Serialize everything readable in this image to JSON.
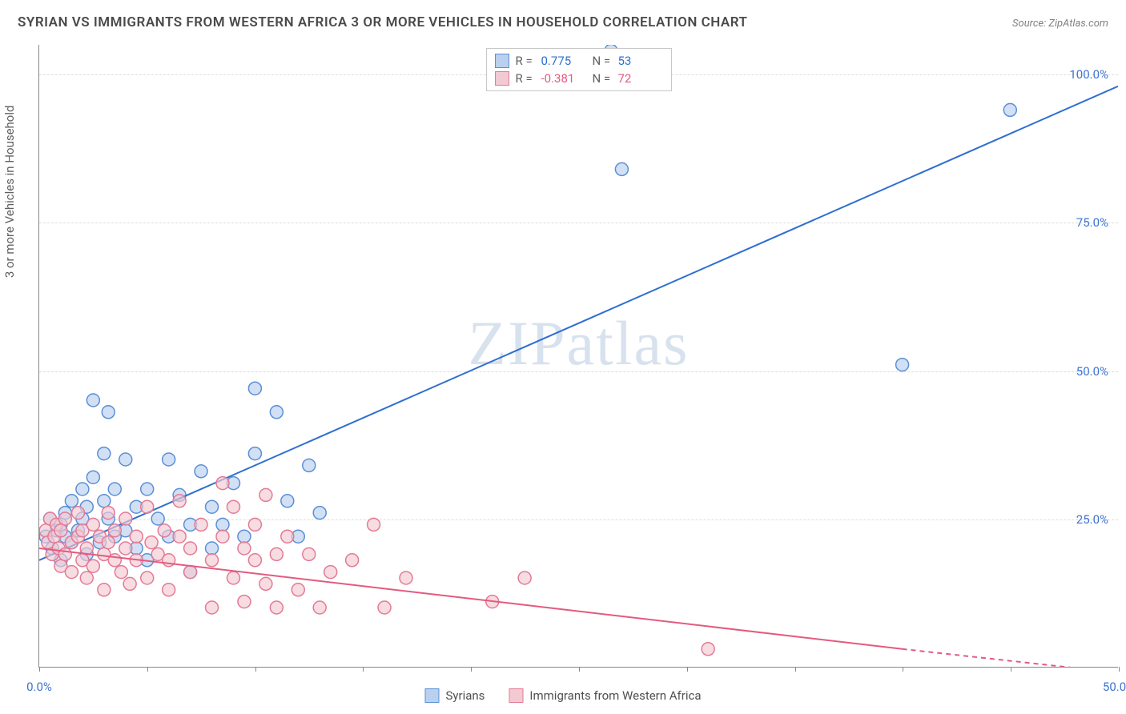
{
  "title": "SYRIAN VS IMMIGRANTS FROM WESTERN AFRICA 3 OR MORE VEHICLES IN HOUSEHOLD CORRELATION CHART",
  "source": "Source: ZipAtlas.com",
  "y_axis_label": "3 or more Vehicles in Household",
  "watermark": "ZIPatlas",
  "chart": {
    "type": "scatter_with_regression",
    "background_color": "#ffffff",
    "grid_color": "#dcdcdc",
    "axis_color": "#888888",
    "tick_label_color": "#3f74d1",
    "xlim": [
      0,
      50
    ],
    "ylim": [
      0,
      105
    ],
    "x_ticks": [
      0,
      5,
      10,
      15,
      20,
      25,
      30,
      35,
      40,
      45,
      50
    ],
    "x_tick_labels": {
      "0": "0.0%",
      "50": "50.0%"
    },
    "y_ticks": [
      25,
      50,
      75,
      100
    ],
    "y_tick_labels": {
      "25": "25.0%",
      "50": "50.0%",
      "75": "75.0%",
      "100": "100.0%"
    },
    "marker_radius": 8,
    "marker_stroke_width": 1.5,
    "line_width": 2,
    "series": [
      {
        "id": "syrians",
        "label": "Syrians",
        "fill": "#b9d0ef",
        "stroke": "#5a8fd6",
        "line_color": "#2f6fd0",
        "R": "0.775",
        "N": "53",
        "regression": {
          "x1": 0,
          "y1": 18,
          "x2": 50,
          "y2": 98
        },
        "points": [
          [
            0.3,
            22
          ],
          [
            0.5,
            25
          ],
          [
            0.6,
            20
          ],
          [
            0.8,
            23
          ],
          [
            1.0,
            24
          ],
          [
            1.0,
            18
          ],
          [
            1.2,
            22
          ],
          [
            1.2,
            26
          ],
          [
            1.5,
            21
          ],
          [
            1.5,
            28
          ],
          [
            1.8,
            23
          ],
          [
            2.0,
            30
          ],
          [
            2.0,
            25
          ],
          [
            2.2,
            27
          ],
          [
            2.2,
            19
          ],
          [
            2.5,
            45
          ],
          [
            2.5,
            32
          ],
          [
            2.8,
            21
          ],
          [
            3.0,
            28
          ],
          [
            3.0,
            36
          ],
          [
            3.2,
            25
          ],
          [
            3.2,
            43
          ],
          [
            3.5,
            30
          ],
          [
            3.5,
            22
          ],
          [
            4.0,
            23
          ],
          [
            4.0,
            35
          ],
          [
            4.5,
            27
          ],
          [
            4.5,
            20
          ],
          [
            5.0,
            18
          ],
          [
            5.0,
            30
          ],
          [
            5.5,
            25
          ],
          [
            6.0,
            35
          ],
          [
            6.0,
            22
          ],
          [
            6.5,
            29
          ],
          [
            7.0,
            16
          ],
          [
            7.0,
            24
          ],
          [
            7.5,
            33
          ],
          [
            8.0,
            20
          ],
          [
            8.0,
            27
          ],
          [
            8.5,
            24
          ],
          [
            9.0,
            31
          ],
          [
            9.5,
            22
          ],
          [
            10.0,
            47
          ],
          [
            10.0,
            36
          ],
          [
            11.0,
            43
          ],
          [
            11.5,
            28
          ],
          [
            12.0,
            22
          ],
          [
            12.5,
            34
          ],
          [
            13.0,
            26
          ],
          [
            26.5,
            104
          ],
          [
            27.0,
            84
          ],
          [
            40.0,
            51
          ],
          [
            45.0,
            94
          ]
        ]
      },
      {
        "id": "immigrants_wa",
        "label": "Immigrants from Western Africa",
        "fill": "#f3c9d3",
        "stroke": "#e37a95",
        "line_color": "#e35a80",
        "R": "-0.381",
        "N": "72",
        "regression": {
          "x1": 0,
          "y1": 20,
          "x2": 40,
          "y2": 3
        },
        "regression_dash": {
          "x1": 40,
          "y1": 3,
          "x2": 50,
          "y2": -1
        },
        "points": [
          [
            0.3,
            23
          ],
          [
            0.4,
            21
          ],
          [
            0.5,
            25
          ],
          [
            0.6,
            19
          ],
          [
            0.7,
            22
          ],
          [
            0.8,
            24
          ],
          [
            0.9,
            20
          ],
          [
            1.0,
            17
          ],
          [
            1.0,
            23
          ],
          [
            1.2,
            25
          ],
          [
            1.2,
            19
          ],
          [
            1.5,
            21
          ],
          [
            1.5,
            16
          ],
          [
            1.8,
            22
          ],
          [
            1.8,
            26
          ],
          [
            2.0,
            18
          ],
          [
            2.0,
            23
          ],
          [
            2.2,
            15
          ],
          [
            2.2,
            20
          ],
          [
            2.5,
            24
          ],
          [
            2.5,
            17
          ],
          [
            2.8,
            22
          ],
          [
            3.0,
            19
          ],
          [
            3.0,
            13
          ],
          [
            3.2,
            26
          ],
          [
            3.2,
            21
          ],
          [
            3.5,
            18
          ],
          [
            3.5,
            23
          ],
          [
            3.8,
            16
          ],
          [
            4.0,
            20
          ],
          [
            4.0,
            25
          ],
          [
            4.2,
            14
          ],
          [
            4.5,
            22
          ],
          [
            4.5,
            18
          ],
          [
            5.0,
            27
          ],
          [
            5.0,
            15
          ],
          [
            5.2,
            21
          ],
          [
            5.5,
            19
          ],
          [
            5.8,
            23
          ],
          [
            6.0,
            13
          ],
          [
            6.0,
            18
          ],
          [
            6.5,
            22
          ],
          [
            6.5,
            28
          ],
          [
            7.0,
            16
          ],
          [
            7.0,
            20
          ],
          [
            7.5,
            24
          ],
          [
            8.0,
            10
          ],
          [
            8.0,
            18
          ],
          [
            8.5,
            22
          ],
          [
            8.5,
            31
          ],
          [
            9.0,
            27
          ],
          [
            9.0,
            15
          ],
          [
            9.5,
            20
          ],
          [
            9.5,
            11
          ],
          [
            10.0,
            18
          ],
          [
            10.0,
            24
          ],
          [
            10.5,
            29
          ],
          [
            10.5,
            14
          ],
          [
            11.0,
            19
          ],
          [
            11.0,
            10
          ],
          [
            11.5,
            22
          ],
          [
            12.0,
            13
          ],
          [
            12.5,
            19
          ],
          [
            13.0,
            10
          ],
          [
            13.5,
            16
          ],
          [
            14.5,
            18
          ],
          [
            15.5,
            24
          ],
          [
            16.0,
            10
          ],
          [
            17.0,
            15
          ],
          [
            21.0,
            11
          ],
          [
            22.5,
            15
          ],
          [
            31.0,
            3
          ]
        ]
      }
    ]
  },
  "legend_top": {
    "r_label": "R =",
    "n_label": "N ="
  },
  "legend_bottom": [
    {
      "series": "syrians"
    },
    {
      "series": "immigrants_wa"
    }
  ]
}
